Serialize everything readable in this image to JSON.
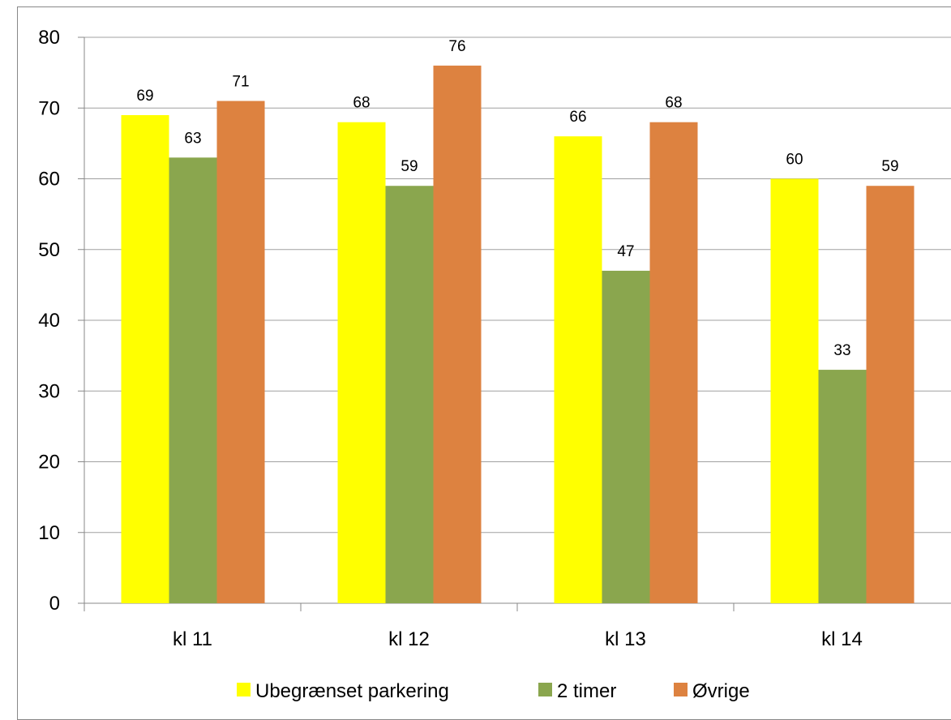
{
  "chart_data": {
    "type": "bar",
    "title": "",
    "xlabel": "",
    "ylabel": "",
    "categories": [
      "kl 11",
      "kl 12",
      "kl 13",
      "kl 14"
    ],
    "series": [
      {
        "name": "Ubegrænset parkering",
        "color": "#ffff00",
        "values": [
          69,
          68,
          66,
          60
        ]
      },
      {
        "name": "2 timer",
        "color": "#8aa64e",
        "values": [
          63,
          59,
          47,
          33
        ]
      },
      {
        "name": "Øvrige",
        "color": "#dd8240",
        "values": [
          71,
          76,
          68,
          59
        ]
      }
    ],
    "ylim": [
      0,
      80
    ],
    "yticks": [
      0,
      10,
      20,
      30,
      40,
      50,
      60,
      70,
      80
    ],
    "grid": true,
    "gridline_color": "#a0a0a0",
    "legend_position": "bottom",
    "data_labels": true
  }
}
